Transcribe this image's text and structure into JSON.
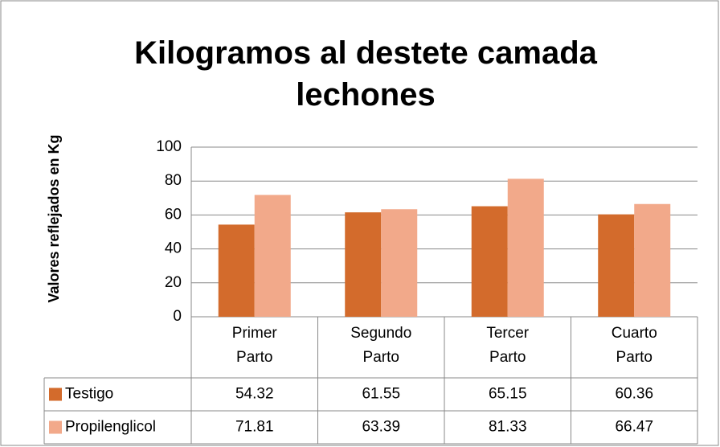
{
  "chart_data": {
    "type": "bar",
    "title": "Kilogramos al destete camada lechones",
    "y_label": "Valores reflejados en Kg",
    "categories": [
      "Primer Parto",
      "Segundo Parto",
      "Tercer Parto",
      "Cuarto Parto"
    ],
    "series": [
      {
        "name": "Testigo",
        "color": "#d36b2c",
        "values": [
          54.32,
          61.55,
          65.15,
          60.36
        ]
      },
      {
        "name": "Propilenglicol",
        "color": "#f2a98a",
        "values": [
          71.81,
          63.39,
          81.33,
          66.47
        ]
      }
    ],
    "ylim": [
      0,
      100
    ],
    "yticks": [
      0,
      20,
      40,
      60,
      80,
      100
    ],
    "grid": true,
    "data_table": true
  }
}
